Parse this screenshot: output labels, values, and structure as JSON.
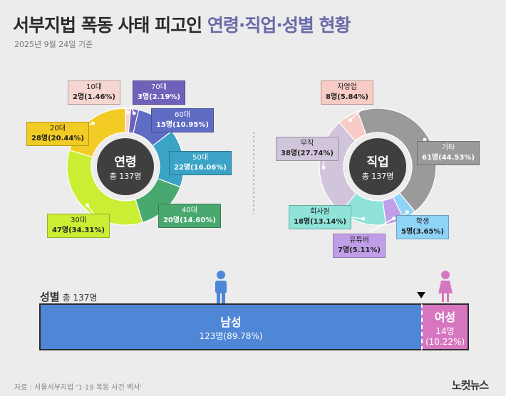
{
  "title": {
    "part1": "서부지법 폭동 사태 피고인",
    "part2": "연령·직업·성별 현황"
  },
  "date": "2025년 9월 24일 기준",
  "source": "자료 : 서울서부지법 '1·19 폭동 사건 백서'",
  "logo": "노컷뉴스",
  "chart_data": [
    {
      "type": "pie",
      "title": "연령",
      "subtitle": "총 137명",
      "categories": [
        "10대",
        "70대",
        "60대",
        "50대",
        "40대",
        "30대",
        "20대"
      ],
      "values": [
        2,
        3,
        15,
        22,
        20,
        47,
        28
      ],
      "labels": [
        "2명(1.46%)",
        "3명(2.19%)",
        "15명(10.95%)",
        "22명(16.06%)",
        "20명(14.60%)",
        "47명(34.31%)",
        "28명(20.44%)"
      ],
      "colors": [
        "#f6d6d0",
        "#7060b9",
        "#5f6cc4",
        "#3ba3c6",
        "#48a86e",
        "#c9ee33",
        "#f2cc25"
      ]
    },
    {
      "type": "pie",
      "title": "직업",
      "subtitle": "총 137명",
      "categories": [
        "기타",
        "학생",
        "유튜버",
        "회사원",
        "무직",
        "자영업"
      ],
      "values": [
        61,
        5,
        7,
        18,
        38,
        8
      ],
      "labels": [
        "61명(44.53%)",
        "5명(3.65%)",
        "7명(5.11%)",
        "18명(13.14%)",
        "38명(27.74%)",
        "8명(5.84%)"
      ],
      "colors": [
        "#9a9a9a",
        "#8fd3f7",
        "#c19fe8",
        "#8fe3d9",
        "#d0c5da",
        "#f8cbc6"
      ]
    },
    {
      "type": "bar",
      "title": "성별",
      "subtitle": "총 137명",
      "categories": [
        "남성",
        "여성"
      ],
      "values": [
        123,
        14
      ],
      "labels": [
        "123명(89.78%)",
        "14명(10.22%)"
      ],
      "colors": [
        "#4f87d6",
        "#d776c0"
      ]
    }
  ]
}
